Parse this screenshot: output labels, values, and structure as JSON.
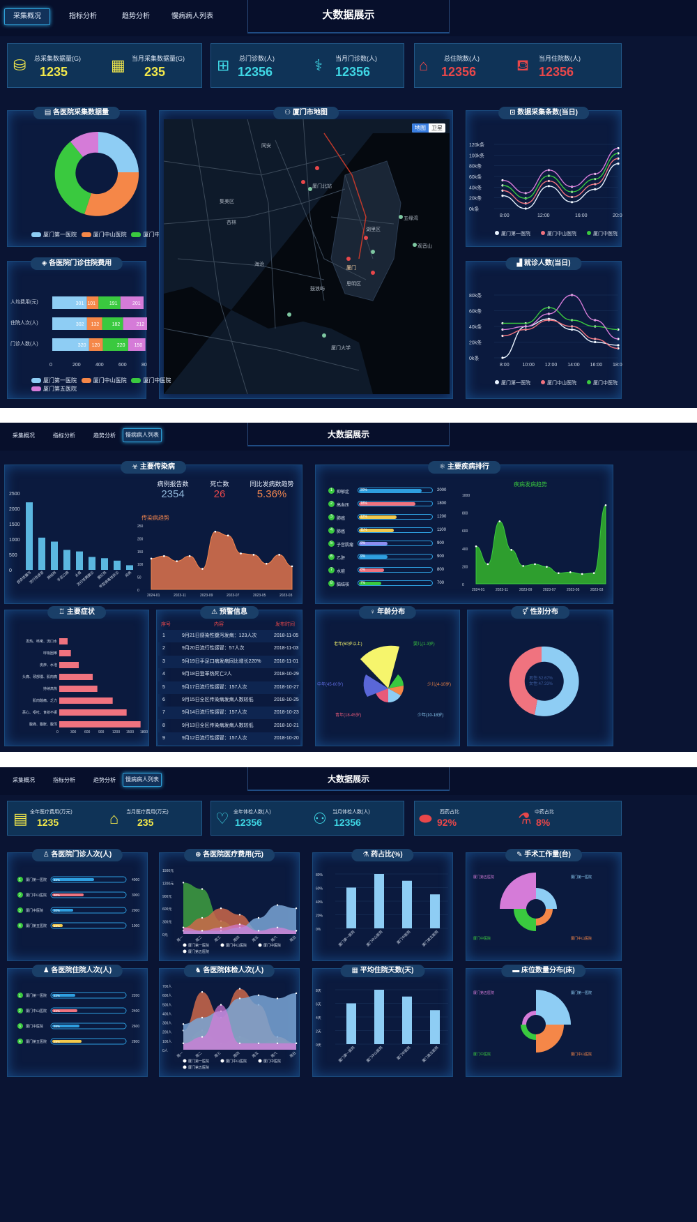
{
  "s1": {
    "title": "大数据展示",
    "tabs": [
      "采集概况",
      "指标分析",
      "趋势分析",
      "慢病病人列表"
    ],
    "stats": [
      {
        "label": "总采集数据量(G)",
        "value": "1235"
      },
      {
        "label": "当月采集数据量(G)",
        "value": "235"
      },
      {
        "label": "总门诊数(人)",
        "value": "12356"
      },
      {
        "label": "当月门诊数(人)",
        "value": "12356"
      },
      {
        "label": "总住院数(人)",
        "value": "12356"
      },
      {
        "label": "当月住院数(人)",
        "value": "12356"
      }
    ],
    "panels": {
      "donut": "各医院采集数据量",
      "map": "厦门市地图",
      "line1": "数据采集条数(当日)",
      "bar": "各医院门诊住院费用",
      "line2": "就诊人数(当日)"
    },
    "hospitals": [
      "厦门第一医院",
      "厦门中山医院",
      "厦门中医院",
      "厦门第五医院"
    ],
    "map_btns": [
      "地图",
      "卫星"
    ],
    "map_places": [
      "厦门北站",
      "同安",
      "杏林",
      "海沧",
      "厦门",
      "思明区",
      "湖里区",
      "集美区",
      "厦门大学",
      "鼓浪屿",
      "五缘湾",
      "观音山"
    ],
    "bar_chart": {
      "type": "bar",
      "categories": [
        "人均费用(元)",
        "住院人次(人)",
        "门诊人数(人)"
      ],
      "series": [
        {
          "name": "厦门第一医院",
          "values": [
            301,
            302,
            320
          ]
        },
        {
          "name": "厦门中山医院",
          "values": [
            101,
            132,
            120
          ]
        },
        {
          "name": "厦门中医院",
          "values": [
            191,
            182,
            220
          ]
        },
        {
          "name": "厦门第五医院",
          "values": [
            201,
            212,
            150
          ]
        }
      ],
      "xticks": [
        "0",
        "200",
        "400",
        "600",
        "800"
      ]
    },
    "line1": {
      "yticks": [
        "0k条",
        "20k条",
        "40k条",
        "60k条",
        "80k条",
        "100k条",
        "120k条"
      ],
      "xticks": [
        "8:00",
        "12:00",
        "16:00",
        "20:00"
      ]
    },
    "line2": {
      "yticks": [
        "0k条",
        "20k条",
        "40k条",
        "60k条",
        "80k条"
      ],
      "xticks": [
        "8:00",
        "10:00",
        "12:00",
        "14:00",
        "16:00",
        "18:00"
      ]
    }
  },
  "s2": {
    "title": "大数据展示",
    "tabs": [
      "采集概况",
      "指标分析",
      "趋势分析",
      "慢病病人列表"
    ],
    "p_infect": "主要传染病",
    "p_rank": "主要疾病排行",
    "p_symptom": "主要症状",
    "p_warn": "预警信息",
    "p_age": "年龄分布",
    "p_gender": "性别分布",
    "kpis": [
      {
        "label": "病例报告数",
        "value": "2354"
      },
      {
        "label": "死亡数",
        "value": "26"
      },
      {
        "label": "同比发病数趋势",
        "value": "5.36%"
      }
    ],
    "infect_bar": {
      "categories": [
        "感染性腹泻",
        "流行性感冒",
        "肺结核",
        "手足口病",
        "水痘",
        "流行性腮腺炎",
        "猩红热",
        "甲型病毒性肝炎",
        "疟疾"
      ],
      "values": [
        2200,
        1050,
        920,
        650,
        600,
        420,
        380,
        300,
        150
      ],
      "yticks": [
        "0",
        "500",
        "1000",
        "1500",
        "2000",
        "2500"
      ]
    },
    "trend_title": "传染病趋势",
    "trend_x": [
      "2024-01",
      "2023-11",
      "2023-09",
      "2023-07",
      "2023-05",
      "2023-03"
    ],
    "trend_y": [
      "0",
      "50",
      "100",
      "150",
      "200",
      "250"
    ],
    "disease_title": "疾病发病趋势",
    "disease_y": [
      "0",
      "200",
      "400",
      "600",
      "800",
      "1000"
    ],
    "rank": [
      {
        "name": "抑郁症",
        "pct": "20%",
        "val": "2000"
      },
      {
        "name": "高血压",
        "pct": "18%",
        "val": "1800"
      },
      {
        "name": "肺癌",
        "pct": "12%",
        "val": "1200"
      },
      {
        "name": "肺癌",
        "pct": "11%",
        "val": "1100"
      },
      {
        "name": "子宫肌瘤",
        "pct": "9%",
        "val": "900"
      },
      {
        "name": "乙肝",
        "pct": "9%",
        "val": "900"
      },
      {
        "name": "水痘",
        "pct": "8%",
        "val": "800"
      },
      {
        "name": "脑结核",
        "pct": "7%",
        "val": "700"
      }
    ],
    "symptoms": {
      "categories": [
        "发热、咳嗽、流口水",
        "呼吸困难",
        "皮疹、水泡",
        "头痛、颈部僵、肌肉痛",
        "持续高热",
        "肌肉酸痛、乏力",
        "恶心、呕吐、食欲不振",
        "腹痛、腹胀、腹泻"
      ],
      "values": [
        180,
        250,
        420,
        720,
        820,
        1150,
        1450,
        1750
      ],
      "xticks": [
        "0",
        "300",
        "600",
        "900",
        "1200",
        "1500",
        "1800"
      ]
    },
    "warn_head": [
      "序号",
      "内容",
      "发布时间"
    ],
    "warn_rows": [
      [
        "1",
        "9月21日感染性腹泻发病：123人次",
        "2018-11-05"
      ],
      [
        "2",
        "9月20日流行性感冒：57人次",
        "2018-11-03"
      ],
      [
        "3",
        "9月19日手足口病发病同比增长220%",
        "2018-11-01"
      ],
      [
        "4",
        "9月18日登革热死亡2人",
        "2018-10-29"
      ],
      [
        "5",
        "9月17日流行性感冒：157人次",
        "2018-10-27"
      ],
      [
        "6",
        "9月15日全区传染病发病人数较低",
        "2018-10-25"
      ],
      [
        "7",
        "9月14日流行性感冒：157人次",
        "2018-10-23"
      ],
      [
        "8",
        "9月13日全区传染病发病人数较低",
        "2018-10-21"
      ],
      [
        "9",
        "9月12日流行性感冒：157人次",
        "2018-10-20"
      ]
    ],
    "age": [
      "老年(60岁以上)",
      "婴儿(1-3岁)",
      "少儿(4-10岁)",
      "少年(10-18岁)",
      "青年(18-45岁)",
      "中年(45-60岁)"
    ],
    "gender": [
      "男性:52.67%",
      "女性:47.33%"
    ]
  },
  "s3": {
    "title": "大数据展示",
    "tabs": [
      "采集概况",
      "指标分析",
      "趋势分析",
      "慢病病人列表"
    ],
    "stats": [
      {
        "label": "全年医疗费用(万元)",
        "value": "1235"
      },
      {
        "label": "当月医疗费用(万元)",
        "value": "235"
      },
      {
        "label": "全年体检人数(人)",
        "value": "12356"
      },
      {
        "label": "当月体检人数(人)",
        "value": "12356"
      },
      {
        "label": "西药占比",
        "value": "92%"
      },
      {
        "label": "中药占比",
        "value": "8%"
      }
    ],
    "panels": [
      "各医院门诊人次(人)",
      "各医院医疗费用(元)",
      "药占比(%)",
      "手术工作量(台)",
      "各医院住院人次(人)",
      "各医院体检人次(人)",
      "平均住院天数(天)",
      "床位数量分布(床)"
    ],
    "hospitals": [
      "厦门第一医院",
      "厦门中山医院",
      "厦门中医院",
      "厦门第五医院"
    ],
    "out_rank": [
      {
        "pct": "40%",
        "val": "4000"
      },
      {
        "pct": "30%",
        "val": "3000"
      },
      {
        "pct": "20%",
        "val": "2000"
      },
      {
        "pct": "10%",
        "val": "1000"
      }
    ],
    "in_rank": [
      {
        "pct": "22%",
        "val": "2200"
      },
      {
        "pct": "24%",
        "val": "2400"
      },
      {
        "pct": "26%",
        "val": "2600"
      },
      {
        "pct": "28%",
        "val": "2800"
      }
    ],
    "fee_y": [
      "0元",
      "300元",
      "600元",
      "900元",
      "1200元",
      "1500元"
    ],
    "weekdays": [
      "周一",
      "周二",
      "周三",
      "周四",
      "周五",
      "周六",
      "周日"
    ],
    "drug": {
      "values": [
        60,
        80,
        70,
        50
      ],
      "yticks": [
        "0%",
        "20%",
        "40%",
        "60%",
        "80%"
      ]
    },
    "exam_y": [
      "0人",
      "100人",
      "200人",
      "300人",
      "400人",
      "500人",
      "600人",
      "700人"
    ],
    "days": {
      "values": [
        6,
        8,
        7,
        5
      ],
      "yticks": [
        "0天",
        "2天",
        "4天",
        "6天",
        "8天"
      ]
    }
  }
}
